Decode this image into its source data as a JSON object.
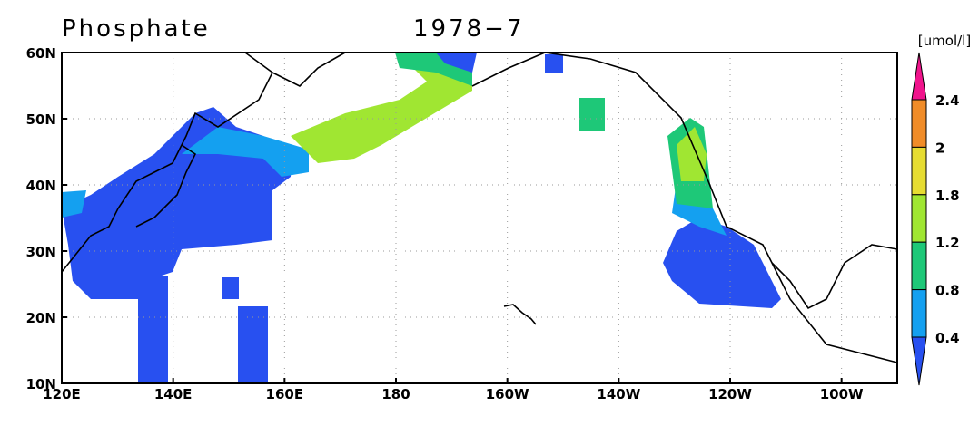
{
  "header": {
    "title": "Phosphate",
    "date": "1978−7"
  },
  "map": {
    "lon_ticks": [
      "120E",
      "140E",
      "160E",
      "180",
      "160W",
      "140W",
      "120W",
      "100W"
    ],
    "lat_ticks": [
      "10N",
      "20N",
      "30N",
      "40N",
      "50N",
      "60N"
    ],
    "grid": true
  },
  "colorbar": {
    "unit": "[umol/l]",
    "labels": [
      "2.4",
      "2",
      "1.8",
      "1.2",
      "0.8",
      "0.4"
    ],
    "colors": [
      "#f0148c",
      "#f08c28",
      "#e6dc32",
      "#a0e632",
      "#1ec878",
      "#14a0f0",
      "#2850f0"
    ]
  }
}
